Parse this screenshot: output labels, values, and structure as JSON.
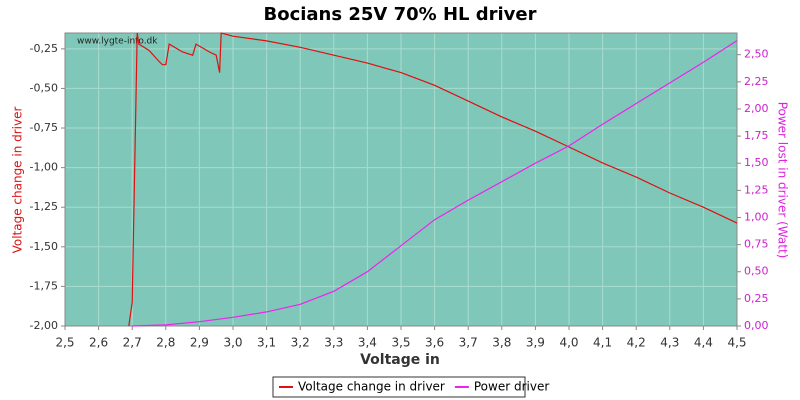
{
  "chart_data": {
    "type": "line",
    "title": "Bocians 25V 70% HL driver",
    "xlabel": "Voltage in",
    "ylabel": "Voltage change in driver",
    "y2label": "Power lost in driver (Watt)",
    "watermark": "www.lygte-info.dk",
    "xlim": [
      2.5,
      4.5
    ],
    "ylim": [
      -2.0,
      -0.15
    ],
    "y2lim": [
      0,
      2.7
    ],
    "xticks": [
      {
        "value": 2.5,
        "label": "2,5"
      },
      {
        "value": 2.6,
        "label": "2,6"
      },
      {
        "value": 2.7,
        "label": "2,7"
      },
      {
        "value": 2.8,
        "label": "2,8"
      },
      {
        "value": 2.9,
        "label": "2,9"
      },
      {
        "value": 3.0,
        "label": "3,0"
      },
      {
        "value": 3.1,
        "label": "3,1"
      },
      {
        "value": 3.2,
        "label": "3,2"
      },
      {
        "value": 3.3,
        "label": "3,3"
      },
      {
        "value": 3.4,
        "label": "3,4"
      },
      {
        "value": 3.5,
        "label": "3,5"
      },
      {
        "value": 3.6,
        "label": "3,6"
      },
      {
        "value": 3.7,
        "label": "3,7"
      },
      {
        "value": 3.8,
        "label": "3,8"
      },
      {
        "value": 3.9,
        "label": "3,9"
      },
      {
        "value": 4.0,
        "label": "4,0"
      },
      {
        "value": 4.1,
        "label": "4,1"
      },
      {
        "value": 4.2,
        "label": "4,2"
      },
      {
        "value": 4.3,
        "label": "4,3"
      },
      {
        "value": 4.4,
        "label": "4,4"
      },
      {
        "value": 4.5,
        "label": "4,5"
      }
    ],
    "yticks": [
      {
        "value": -2.0,
        "label": "-2,00"
      },
      {
        "value": -1.75,
        "label": "-1,75"
      },
      {
        "value": -1.5,
        "label": "-1,50"
      },
      {
        "value": -1.25,
        "label": "-1,25"
      },
      {
        "value": -1.0,
        "label": "-1,00"
      },
      {
        "value": -0.75,
        "label": "-0,75"
      },
      {
        "value": -0.5,
        "label": "-0,50"
      },
      {
        "value": -0.25,
        "label": "-0,25"
      }
    ],
    "y2ticks": [
      {
        "value": 0,
        "label": "0,00"
      },
      {
        "value": 0.25,
        "label": "0,25"
      },
      {
        "value": 0.5,
        "label": "0,50"
      },
      {
        "value": 0.75,
        "label": "0,75"
      },
      {
        "value": 1.0,
        "label": "1,00"
      },
      {
        "value": 1.25,
        "label": "1,25"
      },
      {
        "value": 1.5,
        "label": "1,50"
      },
      {
        "value": 1.75,
        "label": "1,75"
      },
      {
        "value": 2.0,
        "label": "2,00"
      },
      {
        "value": 2.25,
        "label": "2,25"
      },
      {
        "value": 2.5,
        "label": "2,50"
      }
    ],
    "grid": true,
    "legend": "bottom",
    "series": [
      {
        "name": "Voltage change in driver",
        "color": "#dd1111",
        "x": [
          2.69,
          2.7,
          2.715,
          2.72,
          2.75,
          2.78,
          2.79,
          2.8,
          2.81,
          2.85,
          2.88,
          2.89,
          2.93,
          2.95,
          2.96,
          2.965,
          3.0,
          3.1,
          3.2,
          3.3,
          3.4,
          3.5,
          3.6,
          3.7,
          3.8,
          3.9,
          4.0,
          4.1,
          4.2,
          4.3,
          4.4,
          4.5
        ],
        "values": [
          -2.0,
          -1.85,
          -0.15,
          -0.22,
          -0.26,
          -0.33,
          -0.35,
          -0.35,
          -0.22,
          -0.27,
          -0.29,
          -0.22,
          -0.27,
          -0.29,
          -0.4,
          -0.15,
          -0.17,
          -0.2,
          -0.24,
          -0.29,
          -0.34,
          -0.4,
          -0.48,
          -0.58,
          -0.68,
          -0.77,
          -0.87,
          -0.97,
          -1.06,
          -1.16,
          -1.25,
          -1.35
        ]
      },
      {
        "name": "Power driver",
        "color": "#ee22ee",
        "axis": "y2",
        "x": [
          2.7,
          2.8,
          2.9,
          3.0,
          3.1,
          3.2,
          3.3,
          3.4,
          3.5,
          3.6,
          3.7,
          3.8,
          3.9,
          4.0,
          4.1,
          4.2,
          4.3,
          4.4,
          4.5
        ],
        "values": [
          0.0,
          0.01,
          0.04,
          0.08,
          0.13,
          0.2,
          0.32,
          0.5,
          0.74,
          0.98,
          1.16,
          1.33,
          1.5,
          1.66,
          1.86,
          2.05,
          2.24,
          2.43,
          2.63
        ]
      }
    ]
  }
}
